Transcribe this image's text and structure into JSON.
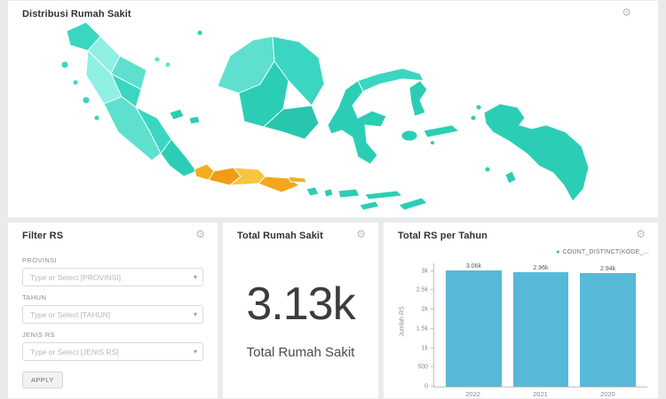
{
  "icons": {
    "gear": "⚙",
    "chevron": "▾",
    "legend_dot": "●"
  },
  "map_panel": {
    "title": "Distribusi Rumah Sakit",
    "colors": {
      "teal": "#2bceb5",
      "tealMid": "#3bd6c1",
      "tealLight": "#5fe0cf",
      "tealLighter": "#8fefe2",
      "tealDark": "#27c6ad",
      "orange": "#f4ad1e",
      "orangeDeep": "#f19c15",
      "amber": "#f6c53e",
      "orangeMid": "#f3a71d",
      "orangeLight": "#f0b02a"
    }
  },
  "filter_panel": {
    "title": "Filter RS",
    "fields": [
      {
        "label": "PROVINSI",
        "placeholder": "Type or Select [PROVINSI]"
      },
      {
        "label": "TAHUN",
        "placeholder": "Type or Select [TAHUN]"
      },
      {
        "label": "JENIS RS",
        "placeholder": "Type or Select [JENIS RS]"
      }
    ],
    "apply_label": "APPLY"
  },
  "total_panel": {
    "title": "Total Rumah Sakit",
    "value": "3.13k",
    "subtitle": "Total Rumah Sakit"
  },
  "chart_panel": {
    "title": "Total RS per Tahun",
    "legend_label": "COUNT_DISTINCT(KODE_..."
  },
  "chart_data": {
    "type": "bar",
    "title": "Total RS per Tahun",
    "categories": [
      "2022",
      "2021",
      "2020"
    ],
    "values": [
      3060,
      2960,
      2940
    ],
    "value_labels": [
      "3.06k",
      "2.96k",
      "2.94k"
    ],
    "xlabel": "",
    "ylabel": "Jumlah RS",
    "ylim": [
      0,
      3200
    ],
    "yticks": [
      {
        "v": 0,
        "label": "0"
      },
      {
        "v": 500,
        "label": "500"
      },
      {
        "v": 1000,
        "label": "1k"
      },
      {
        "v": 1500,
        "label": "1.5k"
      },
      {
        "v": 2000,
        "label": "2k"
      },
      {
        "v": 2500,
        "label": "2.5k"
      },
      {
        "v": 3000,
        "label": "3k"
      }
    ],
    "legend": [
      "COUNT_DISTINCT(KODE_..."
    ],
    "legend_position": "top-right",
    "grid": false,
    "bar_color": "#57b8d8"
  }
}
